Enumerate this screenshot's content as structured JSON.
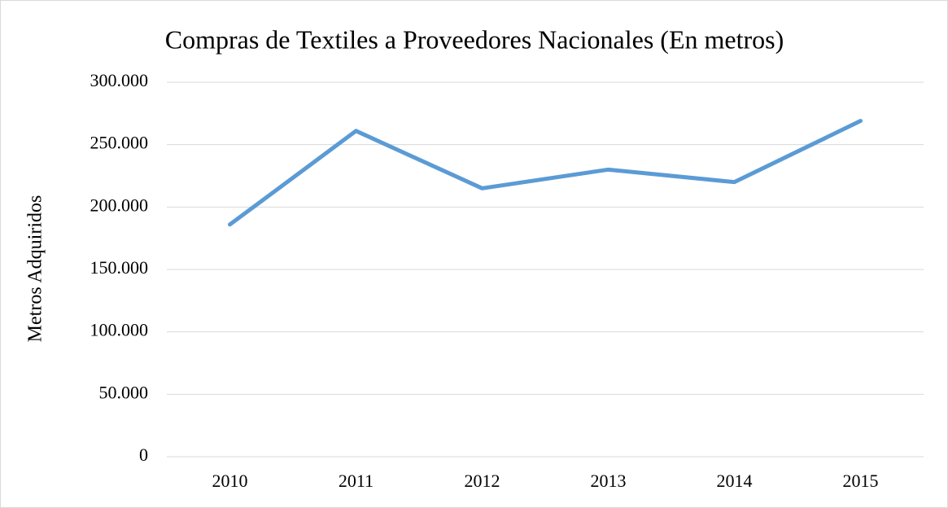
{
  "chart_data": {
    "type": "line",
    "title": "Compras de Textiles a Proveedores Nacionales (En metros)",
    "y_label": "Metros Adquiridos",
    "categories": [
      "2010",
      "2011",
      "2012",
      "2013",
      "2014",
      "2015"
    ],
    "series": [
      {
        "name": "Metros Adquiridos",
        "color": "#5b9bd5",
        "values": [
          186000,
          261000,
          215000,
          230000,
          220000,
          269000
        ]
      }
    ],
    "ylim": [
      0,
      300000
    ],
    "yticks": [
      0,
      {
        "value": 50000,
        "label": "50.000"
      },
      {
        "value": 100000,
        "label": "100.000"
      },
      {
        "value": 150000,
        "label": "150.000"
      },
      {
        "value": 200000,
        "label": "200.000"
      },
      {
        "value": 250000,
        "label": "250.000"
      },
      {
        "value": 300000,
        "label": "300.000"
      }
    ],
    "grid": true
  }
}
